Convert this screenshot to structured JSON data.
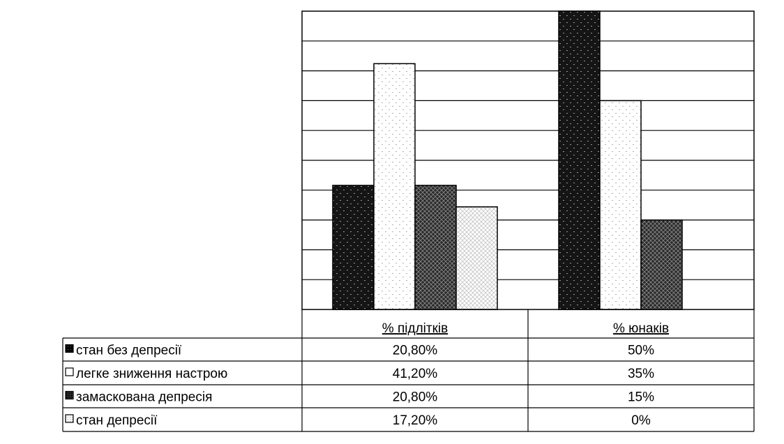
{
  "chart_data": {
    "type": "bar",
    "categories": [
      "% підлітків",
      "% юнаків"
    ],
    "series": [
      {
        "name": "стан без депресії",
        "values": [
          20.8,
          50
        ],
        "labels": [
          "20,80%",
          "50%"
        ],
        "pattern": "dark-dotted"
      },
      {
        "name": "легке зниження настрою",
        "values": [
          41.2,
          35
        ],
        "labels": [
          "41,20%",
          "35%"
        ],
        "pattern": "light-dotted"
      },
      {
        "name": "замаскована депресія",
        "values": [
          20.8,
          15
        ],
        "labels": [
          "20,80%",
          "15%"
        ],
        "pattern": "dark-crosshatch"
      },
      {
        "name": "стан депресії",
        "values": [
          17.2,
          0
        ],
        "labels": [
          "17,20%",
          "0%"
        ],
        "pattern": "light-crosshatch"
      }
    ],
    "ylim": [
      0,
      50
    ],
    "grid": true,
    "legend": "data-table"
  },
  "colors": {
    "ink": "#000000",
    "dark_fill": "#1a1a1a",
    "mid_fill": "#3a3a3a",
    "light_fill": "#ffffff"
  }
}
